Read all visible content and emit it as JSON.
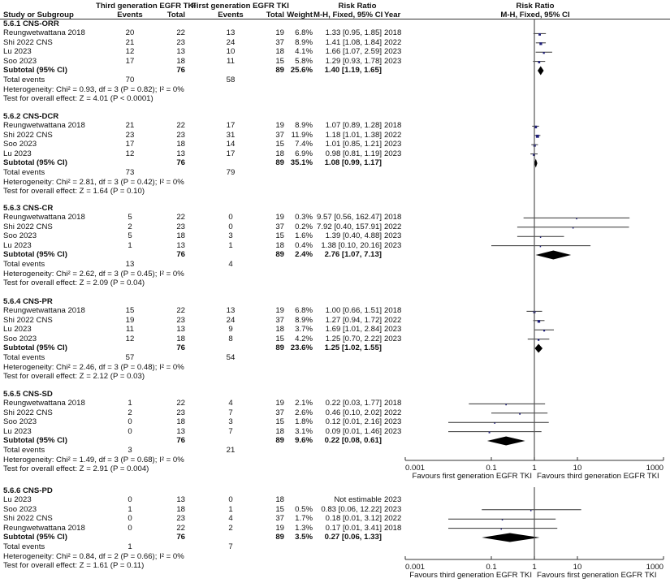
{
  "header": {
    "group1": "Third generation EGFR TKI",
    "group2": "First generation EGFR TKI",
    "rr_title": "Risk Ratio",
    "rr_method": "M-H, Fixed, 95% CI",
    "year": "Year",
    "plot_title": "Risk Ratio",
    "plot_method": "M-H, Fixed, 95% CI",
    "study": "Study or Subgroup",
    "events": "Events",
    "total": "Total",
    "weight": "Weight"
  },
  "labels": {
    "subtotal": "Subtotal (95% CI)",
    "total_events": "Total events"
  },
  "colors": {
    "marker": "#1f1f7a",
    "line": "#333333",
    "diamond": "#000000"
  },
  "chart_data": {
    "type": "forest",
    "scale": "log",
    "xlim": [
      0.001,
      1000
    ],
    "axes": [
      {
        "ticks": [
          "0.001",
          "0.1",
          "1",
          "10",
          "1000"
        ],
        "left_label": "Favours first generation EGFR TKI",
        "right_label": "Favours third generation EGFR TKI"
      },
      {
        "ticks": [
          "0.001",
          "0.1",
          "1",
          "10",
          "1000"
        ],
        "left_label": "Favours third generation EGFR TKI",
        "right_label": "Favours first generation EGFR TKI"
      }
    ],
    "sections": [
      {
        "title": "5.6.1 CNS-ORR",
        "studies": [
          {
            "name": "Reungwetwattana 2018",
            "e1": "20",
            "t1": "22",
            "e2": "13",
            "t2": "19",
            "weight": "6.8%",
            "rr_text": "1.33 [0.95, 1.85]",
            "year": "2018",
            "rr": 1.33,
            "lo": 0.95,
            "hi": 1.85,
            "w": 6.8
          },
          {
            "name": "Shi 2022 CNS",
            "e1": "21",
            "t1": "23",
            "e2": "24",
            "t2": "37",
            "weight": "8.9%",
            "rr_text": "1.41 [1.08, 1.84]",
            "year": "2022",
            "rr": 1.41,
            "lo": 1.08,
            "hi": 1.84,
            "w": 8.9
          },
          {
            "name": "Lu 2023",
            "e1": "12",
            "t1": "13",
            "e2": "10",
            "t2": "18",
            "weight": "4.1%",
            "rr_text": "1.66 [1.07, 2.59]",
            "year": "2023",
            "rr": 1.66,
            "lo": 1.07,
            "hi": 2.59,
            "w": 4.1
          },
          {
            "name": "Soo 2023",
            "e1": "17",
            "t1": "18",
            "e2": "11",
            "t2": "15",
            "weight": "5.8%",
            "rr_text": "1.29 [0.93, 1.78]",
            "year": "2023",
            "rr": 1.29,
            "lo": 0.93,
            "hi": 1.78,
            "w": 5.8
          }
        ],
        "subtotal": {
          "t1": "76",
          "t2": "89",
          "weight": "25.6%",
          "rr_text": "1.40 [1.19, 1.65]",
          "rr": 1.4,
          "lo": 1.19,
          "hi": 1.65
        },
        "total_events": {
          "e1": "70",
          "e2": "58"
        },
        "heterogeneity": "Heterogeneity: Chi² = 0.93, df = 3 (P = 0.82); I² = 0%",
        "overall": "Test for overall effect: Z = 4.01 (P < 0.0001)"
      },
      {
        "title": "5.6.2 CNS-DCR",
        "studies": [
          {
            "name": "Reungwetwattana 2018",
            "e1": "21",
            "t1": "22",
            "e2": "17",
            "t2": "19",
            "weight": "8.9%",
            "rr_text": "1.07 [0.89, 1.28]",
            "year": "2018",
            "rr": 1.07,
            "lo": 0.89,
            "hi": 1.28,
            "w": 8.9
          },
          {
            "name": "Shi 2022 CNS",
            "e1": "23",
            "t1": "23",
            "e2": "31",
            "t2": "37",
            "weight": "11.9%",
            "rr_text": "1.18 [1.01, 1.38]",
            "year": "2022",
            "rr": 1.18,
            "lo": 1.01,
            "hi": 1.38,
            "w": 11.9
          },
          {
            "name": "Soo 2023",
            "e1": "17",
            "t1": "18",
            "e2": "14",
            "t2": "15",
            "weight": "7.4%",
            "rr_text": "1.01 [0.85, 1.21]",
            "year": "2023",
            "rr": 1.01,
            "lo": 0.85,
            "hi": 1.21,
            "w": 7.4
          },
          {
            "name": "Lu 2023",
            "e1": "12",
            "t1": "13",
            "e2": "17",
            "t2": "18",
            "weight": "6.9%",
            "rr_text": "0.98 [0.81, 1.19]",
            "year": "2023",
            "rr": 0.98,
            "lo": 0.81,
            "hi": 1.19,
            "w": 6.9
          }
        ],
        "subtotal": {
          "t1": "76",
          "t2": "89",
          "weight": "35.1%",
          "rr_text": "1.08 [0.99, 1.17]",
          "rr": 1.08,
          "lo": 0.99,
          "hi": 1.17
        },
        "total_events": {
          "e1": "73",
          "e2": "79"
        },
        "heterogeneity": "Heterogeneity: Chi² = 2.81, df = 3 (P = 0.42); I² = 0%",
        "overall": "Test for overall effect: Z = 1.64 (P = 0.10)"
      },
      {
        "title": "5.6.3 CNS-CR",
        "studies": [
          {
            "name": "Reungwetwattana 2018",
            "e1": "5",
            "t1": "22",
            "e2": "0",
            "t2": "19",
            "weight": "0.3%",
            "rr_text": "9.57 [0.56, 162.47]",
            "year": "2018",
            "rr": 9.57,
            "lo": 0.56,
            "hi": 162.47,
            "w": 0.3
          },
          {
            "name": "Shi 2022 CNS",
            "e1": "2",
            "t1": "23",
            "e2": "0",
            "t2": "37",
            "weight": "0.2%",
            "rr_text": "7.92 [0.40, 157.91]",
            "year": "2022",
            "rr": 7.92,
            "lo": 0.4,
            "hi": 157.91,
            "w": 0.2
          },
          {
            "name": "Soo 2023",
            "e1": "5",
            "t1": "18",
            "e2": "3",
            "t2": "15",
            "weight": "1.6%",
            "rr_text": "1.39 [0.40, 4.88]",
            "year": "2023",
            "rr": 1.39,
            "lo": 0.4,
            "hi": 4.88,
            "w": 1.6
          },
          {
            "name": "Lu 2023",
            "e1": "1",
            "t1": "13",
            "e2": "1",
            "t2": "18",
            "weight": "0.4%",
            "rr_text": "1.38 [0.10, 20.16]",
            "year": "2023",
            "rr": 1.38,
            "lo": 0.1,
            "hi": 20.16,
            "w": 0.4
          }
        ],
        "subtotal": {
          "t1": "76",
          "t2": "89",
          "weight": "2.4%",
          "rr_text": "2.76 [1.07, 7.13]",
          "rr": 2.76,
          "lo": 1.07,
          "hi": 7.13
        },
        "total_events": {
          "e1": "13",
          "e2": "4"
        },
        "heterogeneity": "Heterogeneity: Chi² = 2.62, df = 3 (P = 0.45); I² = 0%",
        "overall": "Test for overall effect: Z = 2.09 (P = 0.04)"
      },
      {
        "title": "5.6.4 CNS-PR",
        "studies": [
          {
            "name": "Reungwetwattana 2018",
            "e1": "15",
            "t1": "22",
            "e2": "13",
            "t2": "19",
            "weight": "6.8%",
            "rr_text": "1.00 [0.66, 1.51]",
            "year": "2018",
            "rr": 1.0,
            "lo": 0.66,
            "hi": 1.51,
            "w": 6.8
          },
          {
            "name": "Shi 2022 CNS",
            "e1": "19",
            "t1": "23",
            "e2": "24",
            "t2": "37",
            "weight": "8.9%",
            "rr_text": "1.27 [0.94, 1.72]",
            "year": "2022",
            "rr": 1.27,
            "lo": 0.94,
            "hi": 1.72,
            "w": 8.9
          },
          {
            "name": "Lu 2023",
            "e1": "11",
            "t1": "13",
            "e2": "9",
            "t2": "18",
            "weight": "3.7%",
            "rr_text": "1.69 [1.01, 2.84]",
            "year": "2023",
            "rr": 1.69,
            "lo": 1.01,
            "hi": 2.84,
            "w": 3.7
          },
          {
            "name": "Soo 2023",
            "e1": "12",
            "t1": "18",
            "e2": "8",
            "t2": "15",
            "weight": "4.2%",
            "rr_text": "1.25 [0.70, 2.22]",
            "year": "2023",
            "rr": 1.25,
            "lo": 0.7,
            "hi": 2.22,
            "w": 4.2
          }
        ],
        "subtotal": {
          "t1": "76",
          "t2": "89",
          "weight": "23.6%",
          "rr_text": "1.25 [1.02, 1.55]",
          "rr": 1.25,
          "lo": 1.02,
          "hi": 1.55
        },
        "total_events": {
          "e1": "57",
          "e2": "54"
        },
        "heterogeneity": "Heterogeneity: Chi² = 2.46, df = 3 (P = 0.48); I² = 0%",
        "overall": "Test for overall effect: Z = 2.12 (P = 0.03)"
      },
      {
        "title": "5.6.5 CNS-SD",
        "studies": [
          {
            "name": "Reungwetwattana 2018",
            "e1": "1",
            "t1": "22",
            "e2": "4",
            "t2": "19",
            "weight": "2.1%",
            "rr_text": "0.22 [0.03, 1.77]",
            "year": "2018",
            "rr": 0.22,
            "lo": 0.03,
            "hi": 1.77,
            "w": 2.1
          },
          {
            "name": "Shi 2022 CNS",
            "e1": "2",
            "t1": "23",
            "e2": "7",
            "t2": "37",
            "weight": "2.6%",
            "rr_text": "0.46 [0.10, 2.02]",
            "year": "2022",
            "rr": 0.46,
            "lo": 0.1,
            "hi": 2.02,
            "w": 2.6
          },
          {
            "name": "Soo 2023",
            "e1": "0",
            "t1": "18",
            "e2": "3",
            "t2": "15",
            "weight": "1.8%",
            "rr_text": "0.12 [0.01, 2.16]",
            "year": "2023",
            "rr": 0.12,
            "lo": 0.01,
            "hi": 2.16,
            "w": 1.8
          },
          {
            "name": "Lu 2023",
            "e1": "0",
            "t1": "13",
            "e2": "7",
            "t2": "18",
            "weight": "3.1%",
            "rr_text": "0.09 [0.01, 1.46]",
            "year": "2023",
            "rr": 0.09,
            "lo": 0.01,
            "hi": 1.46,
            "w": 3.1
          }
        ],
        "subtotal": {
          "t1": "76",
          "t2": "89",
          "weight": "9.6%",
          "rr_text": "0.22 [0.08, 0.61]",
          "rr": 0.22,
          "lo": 0.08,
          "hi": 0.61
        },
        "total_events": {
          "e1": "3",
          "e2": "21"
        },
        "heterogeneity": "Heterogeneity: Chi² = 1.49, df = 3 (P = 0.68); I² = 0%",
        "overall": "Test for overall effect: Z = 2.91 (P = 0.004)"
      },
      {
        "title": "5.6.6 CNS-PD",
        "studies": [
          {
            "name": "Lu 2023",
            "e1": "0",
            "t1": "13",
            "e2": "0",
            "t2": "18",
            "weight": "",
            "rr_text": "Not estimable",
            "year": "2023",
            "rr": null,
            "lo": null,
            "hi": null,
            "w": 0
          },
          {
            "name": "Soo 2023",
            "e1": "1",
            "t1": "18",
            "e2": "1",
            "t2": "15",
            "weight": "0.5%",
            "rr_text": "0.83 [0.06, 12.22]",
            "year": "2023",
            "rr": 0.83,
            "lo": 0.06,
            "hi": 12.22,
            "w": 0.5
          },
          {
            "name": "Shi 2022 CNS",
            "e1": "0",
            "t1": "23",
            "e2": "4",
            "t2": "37",
            "weight": "1.7%",
            "rr_text": "0.18 [0.01, 3.12]",
            "year": "2022",
            "rr": 0.18,
            "lo": 0.01,
            "hi": 3.12,
            "w": 1.7
          },
          {
            "name": "Reungwetwattana 2018",
            "e1": "0",
            "t1": "22",
            "e2": "2",
            "t2": "19",
            "weight": "1.3%",
            "rr_text": "0.17 [0.01, 3.41]",
            "year": "2018",
            "rr": 0.17,
            "lo": 0.01,
            "hi": 3.41,
            "w": 1.3
          }
        ],
        "subtotal": {
          "t1": "76",
          "t2": "89",
          "weight": "3.5%",
          "rr_text": "0.27 [0.06, 1.33]",
          "rr": 0.27,
          "lo": 0.06,
          "hi": 1.33
        },
        "total_events": {
          "e1": "1",
          "e2": "7"
        },
        "heterogeneity": "Heterogeneity: Chi² = 0.84, df = 2 (P = 0.66); I² = 0%",
        "overall": "Test for overall effect: Z = 1.61 (P = 0.11)"
      }
    ]
  }
}
